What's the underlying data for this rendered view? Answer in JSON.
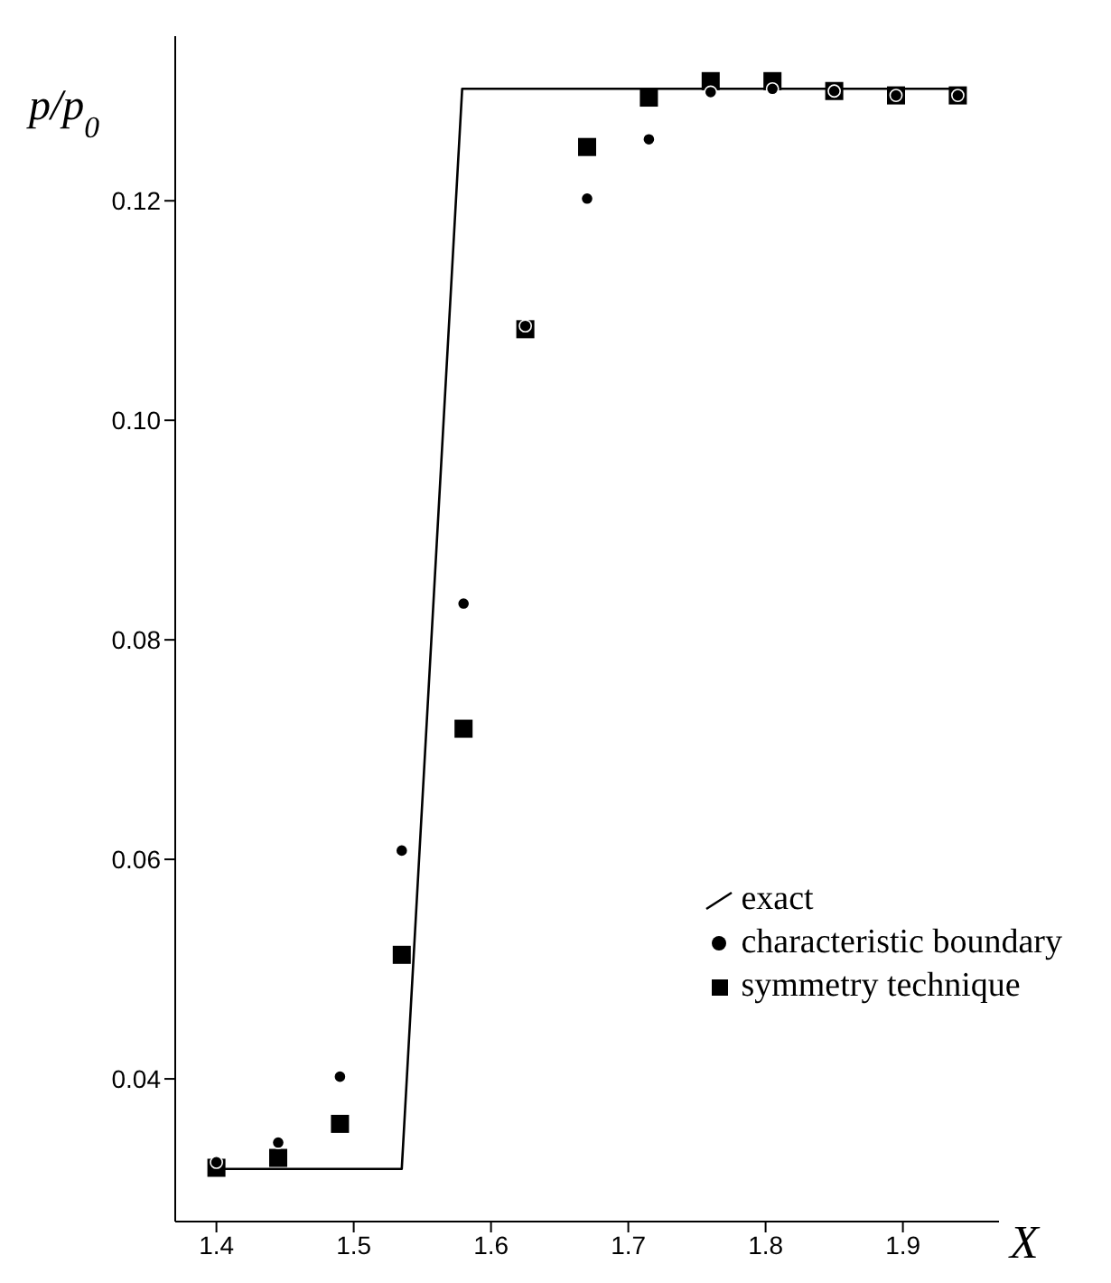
{
  "chart_data": {
    "type": "scatter",
    "xlabel": "X",
    "ylabel": "p/p$_{0}$",
    "xlim": [
      1.37,
      1.97
    ],
    "ylim": [
      0.027,
      0.135
    ],
    "xticks": [
      1.4,
      1.5,
      1.6,
      1.7,
      1.8,
      1.9
    ],
    "yticks": [
      {
        "value": 0.04,
        "label": "0.04"
      },
      {
        "value": 0.06,
        "label": "0.06"
      },
      {
        "value": 0.08,
        "label": "0.08"
      },
      {
        "value": 0.1,
        "label": "0.10"
      },
      {
        "value": 0.12,
        "label": "0.12"
      }
    ],
    "grid": false,
    "legend": "bottom right",
    "series": [
      {
        "name": "exact",
        "type": "line",
        "color": "#000000",
        "marker": "none",
        "line_style": "solid",
        "x": [
          1.4,
          1.535,
          1.579,
          1.94
        ],
        "values": [
          0.0318,
          0.0318,
          0.1302,
          0.1302
        ]
      },
      {
        "name": "characteristic boundary",
        "color": "#000000",
        "marker": "circle",
        "x": [
          1.4,
          1.445,
          1.49,
          1.535,
          1.58,
          1.625,
          1.67,
          1.715,
          1.76,
          1.805,
          1.85,
          1.895,
          1.94
        ],
        "values": [
          0.0324,
          0.0342,
          0.0402,
          0.0608,
          0.0833,
          0.1086,
          0.1202,
          0.1256,
          0.1299,
          0.1302,
          0.13,
          0.1296,
          0.1296
        ]
      },
      {
        "name": "symmetry technique",
        "color": "#000000",
        "marker": "square",
        "x": [
          1.4,
          1.445,
          1.49,
          1.535,
          1.58,
          1.625,
          1.67,
          1.715,
          1.76,
          1.805,
          1.85,
          1.895,
          1.94
        ],
        "values": [
          0.0319,
          0.0328,
          0.0359,
          0.0513,
          0.0719,
          0.1083,
          0.1249,
          0.1294,
          0.1309,
          0.1309,
          0.13,
          0.1296,
          0.1296
        ]
      }
    ]
  }
}
